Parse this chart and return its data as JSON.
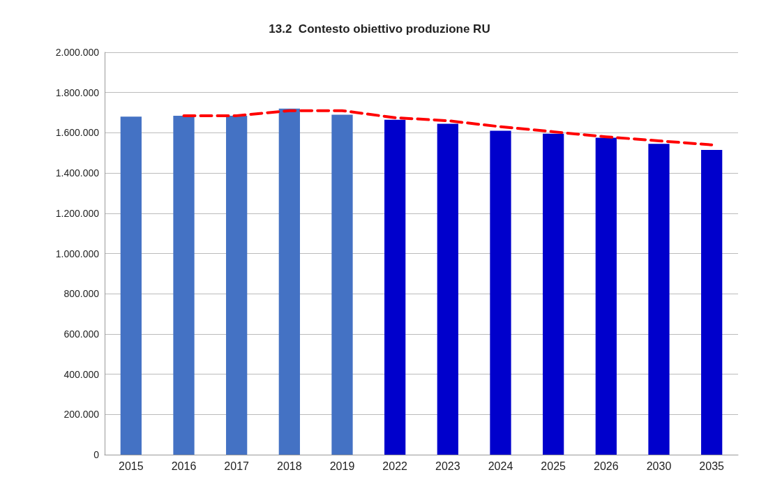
{
  "chart_data": {
    "type": "bar",
    "title": "13.2  Contesto obiettivo produzione RU",
    "categories": [
      "2015",
      "2016",
      "2017",
      "2018",
      "2019",
      "2022",
      "2023",
      "2024",
      "2025",
      "2026",
      "2030",
      "2035"
    ],
    "series": [
      {
        "colors": [
          "#4472c4",
          "#4472c4",
          "#4472c4",
          "#4472c4",
          "#4472c4",
          "#0000cc",
          "#0000cc",
          "#0000cc",
          "#0000cc",
          "#0000cc",
          "#0000cc",
          "#0000cc"
        ],
        "values": [
          1680000,
          1685000,
          1685000,
          1720000,
          1690000,
          1665000,
          1645000,
          1610000,
          1595000,
          1575000,
          1545000,
          1515000
        ]
      },
      {
        "type": "line",
        "color": "#ff0000",
        "line_style": "dashed",
        "marker": "none",
        "values": [
          null,
          1685000,
          1685000,
          1710000,
          1710000,
          1675000,
          1660000,
          1630000,
          1605000,
          1580000,
          1560000,
          1540000
        ]
      }
    ],
    "ylim": [
      0,
      2000000
    ],
    "yticks": [
      0,
      {
        "value": 200000,
        "label": "200.000"
      },
      {
        "value": 400000,
        "label": "400.000"
      },
      {
        "value": 600000,
        "label": "600.000"
      },
      {
        "value": 800000,
        "label": "800.000"
      },
      {
        "value": 1000000,
        "label": "1.000.000"
      },
      {
        "value": 1200000,
        "label": "1.200.000"
      },
      {
        "value": 1400000,
        "label": "1.400.000"
      },
      {
        "value": 1600000,
        "label": "1.600.000"
      },
      {
        "value": 1800000,
        "label": "1.800.000"
      },
      {
        "value": 2000000,
        "label": "2.000.000"
      }
    ],
    "grid": "y"
  }
}
